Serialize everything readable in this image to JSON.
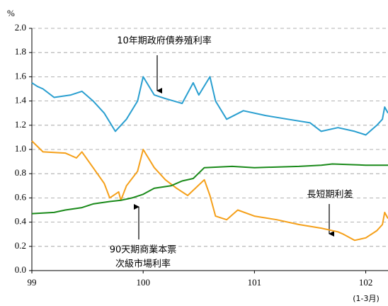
{
  "chart_data": {
    "type": "line",
    "ylabel": "%",
    "xlim": [
      99,
      102.2
    ],
    "ylim": [
      0,
      2
    ],
    "xticks": [
      99,
      100,
      101,
      102
    ],
    "yticks": [
      {
        "value": 0,
        "label": "0.0"
      },
      0.2,
      0.4,
      0.6,
      0.8,
      {
        "value": 1,
        "label": "1.0"
      },
      1.2,
      1.4,
      1.6,
      1.8,
      {
        "value": 2,
        "label": "2.0"
      }
    ],
    "grid": true,
    "x_note": "(1-3月)",
    "annotations": [
      "10年期政府債券殖利率",
      "長短期利差",
      "90天期商業本票",
      "次級市場利率"
    ],
    "series": [
      {
        "color": "#2a9fd0",
        "x": [
          99,
          99.05,
          99.1,
          99.2,
          99.35,
          99.45,
          99.55,
          99.65,
          99.75,
          99.85,
          99.95,
          100,
          100.1,
          100.2,
          100.35,
          100.45,
          100.5,
          100.6,
          100.65,
          100.75,
          100.9,
          101.1,
          101.3,
          101.5,
          101.6,
          101.75,
          101.9,
          102,
          102.1,
          102.15,
          102.17,
          102.2
        ],
        "values": [
          1.55,
          1.52,
          1.5,
          1.43,
          1.45,
          1.48,
          1.4,
          1.3,
          1.15,
          1.25,
          1.4,
          1.6,
          1.45,
          1.42,
          1.38,
          1.55,
          1.45,
          1.6,
          1.4,
          1.25,
          1.32,
          1.28,
          1.25,
          1.22,
          1.15,
          1.18,
          1.15,
          1.12,
          1.2,
          1.25,
          1.35,
          1.3
        ]
      },
      {
        "color": "#f5a01a",
        "x": [
          99,
          99.1,
          99.3,
          99.4,
          99.45,
          99.55,
          99.65,
          99.7,
          99.78,
          99.8,
          99.85,
          99.95,
          100,
          100.1,
          100.2,
          100.3,
          100.4,
          100.55,
          100.6,
          100.65,
          100.75,
          100.85,
          101,
          101.2,
          101.4,
          101.6,
          101.75,
          101.8,
          101.9,
          102,
          102.1,
          102.15,
          102.17,
          102.2
        ],
        "values": [
          1.07,
          0.98,
          0.97,
          0.93,
          0.98,
          0.85,
          0.72,
          0.6,
          0.65,
          0.58,
          0.7,
          0.82,
          1,
          0.85,
          0.75,
          0.68,
          0.62,
          0.75,
          0.62,
          0.45,
          0.42,
          0.5,
          0.45,
          0.42,
          0.38,
          0.35,
          0.32,
          0.3,
          0.25,
          0.27,
          0.33,
          0.38,
          0.48,
          0.43
        ]
      },
      {
        "color": "#1a8a1a",
        "x": [
          99,
          99.2,
          99.3,
          99.45,
          99.55,
          99.7,
          99.8,
          99.9,
          100,
          100.1,
          100.25,
          100.35,
          100.45,
          100.55,
          100.8,
          101,
          101.4,
          101.6,
          101.7,
          102,
          102.2
        ],
        "values": [
          0.47,
          0.48,
          0.5,
          0.52,
          0.55,
          0.57,
          0.58,
          0.6,
          0.63,
          0.68,
          0.7,
          0.74,
          0.76,
          0.85,
          0.86,
          0.85,
          0.86,
          0.87,
          0.88,
          0.87,
          0.87
        ]
      }
    ]
  }
}
